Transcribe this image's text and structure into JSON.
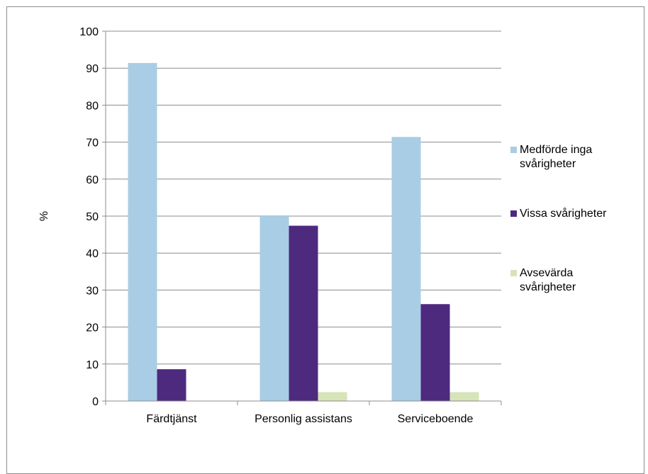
{
  "chart_data": {
    "type": "bar",
    "title": "",
    "xlabel": "",
    "ylabel": "%",
    "ylim": [
      0,
      100
    ],
    "yticks": [
      0,
      10,
      20,
      30,
      40,
      50,
      60,
      70,
      80,
      90,
      100
    ],
    "grid": true,
    "legend_position": "right",
    "categories": [
      "Färdtjänst",
      "Personlig assistans",
      "Serviceboende"
    ],
    "series": [
      {
        "name": "Medförde inga svårigheter",
        "color": "#a9cde4",
        "values": [
          91.4,
          50.2,
          71.4
        ]
      },
      {
        "name": "Vissa svårigheter",
        "color": "#4e2a7f",
        "values": [
          8.6,
          47.4,
          26.2
        ]
      },
      {
        "name": "Avsevärda svårigheter",
        "color": "#d6e4b8",
        "values": [
          0,
          2.4,
          2.4
        ]
      }
    ]
  }
}
